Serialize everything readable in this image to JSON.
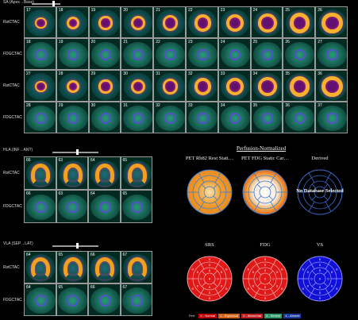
{
  "sa_panel": {
    "title": "SA (Apex→Base)",
    "rows": [
      {
        "label": "RstCTAC",
        "type": "rest",
        "nums": [
          "17",
          "18",
          "19",
          "20",
          "21",
          "22",
          "23",
          "24",
          "25",
          "26"
        ]
      },
      {
        "label": "FDGCTAC",
        "type": "fdg",
        "nums": [
          "18",
          "19",
          "20",
          "21",
          "22",
          "23",
          "24",
          "25",
          "26",
          "27"
        ]
      },
      {
        "label": "RstCTAC",
        "type": "rest",
        "nums": [
          "27",
          "28",
          "29",
          "30",
          "31",
          "32",
          "33",
          "34",
          "35",
          "36"
        ]
      },
      {
        "label": "FDGCTAC",
        "type": "fdg",
        "nums": [
          "28",
          "29",
          "30",
          "31",
          "32",
          "33",
          "34",
          "35",
          "36",
          "37"
        ]
      }
    ]
  },
  "hla_panel": {
    "title": "HLA (INF→ANT)",
    "rows": [
      {
        "label": "RstCTAC",
        "type": "rest",
        "nums": [
          "66",
          "63",
          "64",
          "65"
        ]
      },
      {
        "label": "FDGCTAC",
        "type": "fdg",
        "nums": [
          "66",
          "63",
          "64",
          "65"
        ]
      }
    ]
  },
  "vla_panel": {
    "title": "VLA (SEP→LAT)",
    "rows": [
      {
        "label": "RstCTAC",
        "type": "rest",
        "nums": [
          "64",
          "65",
          "66",
          "67"
        ]
      },
      {
        "label": "FDGCTAC",
        "type": "fdg",
        "nums": [
          "64",
          "65",
          "66",
          "67"
        ]
      }
    ]
  },
  "polar": {
    "title": "Perfusion-Normalized",
    "top": [
      {
        "label": "PET Rb82 Rest Stati…",
        "style": "rest"
      },
      {
        "label": "PET FDG Static Car…",
        "style": "fdg"
      },
      {
        "label": "Derived",
        "style": "none",
        "overlay": "No Database Selected"
      }
    ],
    "bottom": [
      {
        "label": "SRS",
        "style": "red"
      },
      {
        "label": "FDG",
        "style": "red"
      },
      {
        "label": "VS",
        "style": "blue"
      }
    ]
  },
  "legend": {
    "prefix": "Perf.",
    "items": [
      {
        "text": "0 - Normal",
        "color": "#c00000"
      },
      {
        "text": "1 - Equivocal",
        "color": "#d06010"
      },
      {
        "text": "2 - Abnormal",
        "color": "#c02020"
      },
      {
        "text": "3 - Severe",
        "color": "#2a9a6a"
      },
      {
        "text": "4 - Absent",
        "color": "#1a3aa0"
      }
    ]
  }
}
